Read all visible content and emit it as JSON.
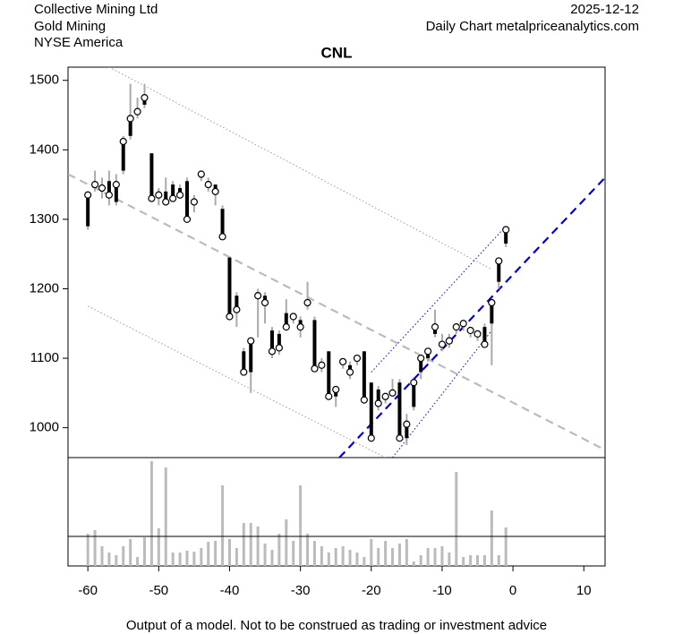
{
  "chart_data": {
    "type": "ohlc",
    "title": "CNL",
    "header_left": [
      "Collective Mining Ltd",
      "Gold Mining",
      "NYSE America"
    ],
    "header_right": [
      "2025-12-12",
      "Daily Chart metalpriceanalytics.com"
    ],
    "footer": "Output of a model. Not to be construed as trading or investment advice",
    "xlim": [
      -62.8,
      13
    ],
    "ylim": [
      957,
      1519
    ],
    "xticks": [
      -60,
      -50,
      -40,
      -30,
      -20,
      -10,
      0,
      10
    ],
    "yticks": [
      1000,
      1100,
      1200,
      1300,
      1400,
      1500
    ],
    "vlim": [
      0,
      121
    ],
    "volume_line": 33,
    "x": [
      -60,
      -59,
      -58,
      -57,
      -56,
      -55,
      -54,
      -53,
      -52,
      -51,
      -50,
      -49,
      -48,
      -47,
      -46,
      -45,
      -44,
      -43,
      -42,
      -41,
      -40,
      -39,
      -38,
      -37,
      -36,
      -35,
      -34,
      -33,
      -32,
      -31,
      -30,
      -29,
      -28,
      -27,
      -26,
      -25,
      -24,
      -23,
      -22,
      -21,
      -20,
      -19,
      -18,
      -17,
      -16,
      -15,
      -14,
      -13,
      -12,
      -11,
      -10,
      -9,
      -8,
      -7,
      -6,
      -5,
      -4,
      -3,
      -2,
      -1
    ],
    "open": [
      1290,
      1345,
      1340,
      1355,
      1325,
      1370,
      1420,
      1450,
      1465,
      1395,
      1335,
      1340,
      1350,
      1345,
      1355,
      1325,
      1360,
      1355,
      1350,
      1315,
      1245,
      1190,
      1110,
      1080,
      1195,
      1190,
      1140,
      1135,
      1165,
      1165,
      1155,
      1175,
      1155,
      1095,
      1110,
      1045,
      1100,
      1090,
      1100,
      1110,
      1065,
      1055,
      1040,
      1050,
      1065,
      985,
      1030,
      1080,
      1100,
      1135,
      1120,
      1130,
      1145,
      1145,
      1140,
      1135,
      1145,
      1150,
      1210,
      1265
    ],
    "high": [
      1340,
      1370,
      1360,
      1370,
      1365,
      1420,
      1495,
      1475,
      1495,
      1395,
      1345,
      1360,
      1355,
      1350,
      1360,
      1335,
      1370,
      1360,
      1350,
      1320,
      1245,
      1195,
      1115,
      1125,
      1200,
      1195,
      1145,
      1140,
      1185,
      1165,
      1160,
      1210,
      1160,
      1100,
      1110,
      1060,
      1100,
      1095,
      1105,
      1110,
      1065,
      1060,
      1050,
      1070,
      1070,
      1020,
      1070,
      1105,
      1115,
      1170,
      1135,
      1135,
      1150,
      1155,
      1145,
      1140,
      1150,
      1185,
      1245,
      1290
    ],
    "low": [
      1285,
      1340,
      1330,
      1320,
      1320,
      1365,
      1415,
      1445,
      1460,
      1325,
      1320,
      1320,
      1325,
      1330,
      1295,
      1310,
      1355,
      1340,
      1320,
      1270,
      1155,
      1145,
      1075,
      1050,
      1130,
      1150,
      1100,
      1105,
      1140,
      1150,
      1130,
      1170,
      1080,
      1080,
      1040,
      1030,
      1085,
      1070,
      1090,
      1035,
      980,
      1025,
      1035,
      1045,
      980,
      975,
      1025,
      1070,
      1095,
      1130,
      1110,
      1115,
      1135,
      1140,
      1130,
      1125,
      1115,
      1090,
      1200,
      1260
    ],
    "close": [
      1335,
      1350,
      1345,
      1335,
      1350,
      1412,
      1445,
      1455,
      1475,
      1330,
      1335,
      1325,
      1330,
      1335,
      1300,
      1325,
      1365,
      1350,
      1340,
      1275,
      1160,
      1170,
      1080,
      1125,
      1190,
      1180,
      1110,
      1115,
      1145,
      1160,
      1145,
      1180,
      1085,
      1090,
      1045,
      1055,
      1095,
      1080,
      1100,
      1040,
      985,
      1035,
      1045,
      1050,
      985,
      1005,
      1065,
      1100,
      1110,
      1145,
      1120,
      1125,
      1145,
      1150,
      1140,
      1135,
      1120,
      1180,
      1240,
      1285
    ],
    "volume": [
      36,
      40,
      22,
      15,
      12,
      22,
      30,
      10,
      32,
      117,
      42,
      110,
      15,
      15,
      17,
      16,
      20,
      27,
      28,
      90,
      30,
      20,
      48,
      48,
      44,
      25,
      18,
      36,
      52,
      28,
      90,
      36,
      28,
      22,
      15,
      20,
      22,
      18,
      15,
      10,
      30,
      20,
      28,
      20,
      25,
      30,
      5,
      12,
      20,
      20,
      22,
      15,
      105,
      10,
      12,
      12,
      12,
      62,
      12,
      43
    ],
    "lines": [
      {
        "x": [
          -62.8,
          13
        ],
        "y": [
          1365,
          968
        ],
        "color": "#bbbbbb",
        "style": "dashed"
      },
      {
        "x": [
          -57,
          -3
        ],
        "y": [
          1519,
          1228
        ],
        "color": "#999999",
        "style": "dotted"
      },
      {
        "x": [
          -60,
          -18
        ],
        "y": [
          1175,
          957
        ],
        "color": "#999999",
        "style": "dotted"
      },
      {
        "x": [
          -24.5,
          13
        ],
        "y": [
          957,
          1360
        ],
        "color": "#0000cc",
        "style": "dashed"
      },
      {
        "x": [
          -20,
          -1
        ],
        "y": [
          1080,
          1290
        ],
        "color": "#0000cc",
        "style": "dotted"
      },
      {
        "x": [
          -17,
          -3
        ],
        "y": [
          957,
          1140
        ],
        "color": "#0000cc",
        "style": "dotted"
      }
    ]
  }
}
